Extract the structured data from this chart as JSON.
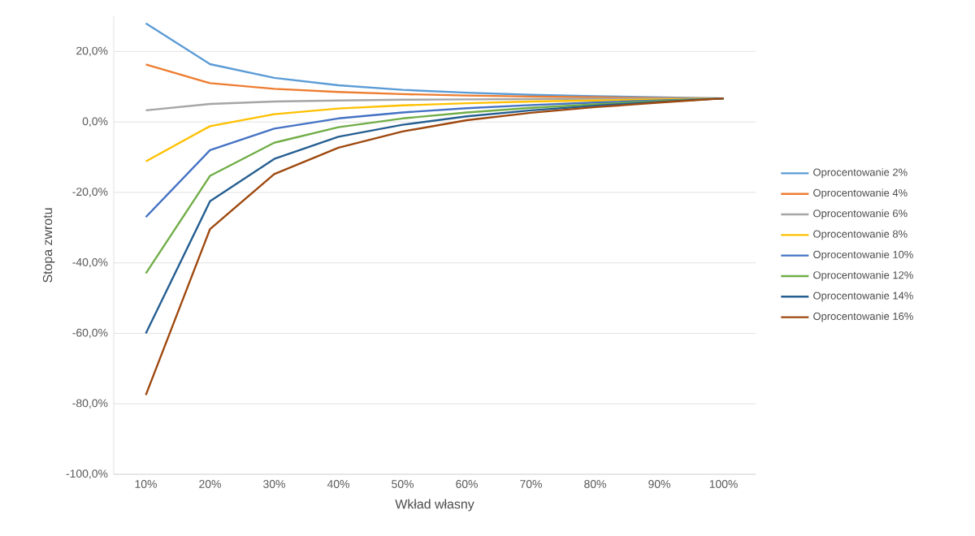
{
  "chart_data": {
    "type": "line",
    "xlabel": "Wkład własny",
    "ylabel": "Stopa zwrotu",
    "categories": [
      "10%",
      "20%",
      "30%",
      "40%",
      "50%",
      "60%",
      "70%",
      "80%",
      "90%",
      "100%"
    ],
    "series": [
      {
        "name": "Oprocentowanie 2%",
        "color": "#5b9bd5",
        "values": [
          28,
          16.4,
          12.5,
          10.4,
          9.1,
          8.3,
          7.7,
          7.3,
          7.0,
          6.7
        ]
      },
      {
        "name": "Oprocentowanie 4%",
        "color": "#ed7d31",
        "values": [
          16.3,
          11,
          9.4,
          8.5,
          7.9,
          7.5,
          7.2,
          7.0,
          6.8,
          6.7
        ]
      },
      {
        "name": "Oprocentowanie 6%",
        "color": "#a5a5a5",
        "values": [
          3.3,
          5.1,
          5.8,
          6.1,
          6.3,
          6.4,
          6.5,
          6.6,
          6.6,
          6.7
        ]
      },
      {
        "name": "Oprocentowanie 8%",
        "color": "#ffc000",
        "values": [
          -11.2,
          -1.2,
          2.2,
          3.8,
          4.7,
          5.3,
          5.8,
          6.1,
          6.4,
          6.7
        ]
      },
      {
        "name": "Oprocentowanie 10%",
        "color": "#4472c4",
        "values": [
          -27,
          -8,
          -1.9,
          1.0,
          2.7,
          3.9,
          4.8,
          5.5,
          6.1,
          6.7
        ]
      },
      {
        "name": "Oprocentowanie 12%",
        "color": "#70ad47",
        "values": [
          -43,
          -15.3,
          -5.9,
          -1.5,
          1.0,
          2.7,
          4.0,
          5.0,
          5.9,
          6.7
        ]
      },
      {
        "name": "Oprocentowanie 14%",
        "color": "#255e91",
        "values": [
          -60,
          -22.5,
          -10.5,
          -4.2,
          -0.8,
          1.6,
          3.3,
          4.6,
          5.7,
          6.7
        ]
      },
      {
        "name": "Oprocentowanie 16%",
        "color": "#9e480e",
        "values": [
          -77.5,
          -30.4,
          -14.8,
          -7.3,
          -2.7,
          0.5,
          2.6,
          4.2,
          5.5,
          6.7
        ]
      }
    ],
    "ylim": [
      -100,
      30
    ],
    "yticks": [
      {
        "value": -100,
        "label": "-100,0%"
      },
      {
        "value": -80,
        "label": "-80,0%"
      },
      {
        "value": -60,
        "label": "-60,0%"
      },
      {
        "value": -40,
        "label": "-40,0%"
      },
      {
        "value": -20,
        "label": "-20,0%"
      },
      {
        "value": 0,
        "label": "0,0%"
      },
      {
        "value": 20,
        "label": "20,0%"
      }
    ],
    "grid": "y",
    "legend": "right",
    "marker": "none",
    "line_style": "solid"
  }
}
